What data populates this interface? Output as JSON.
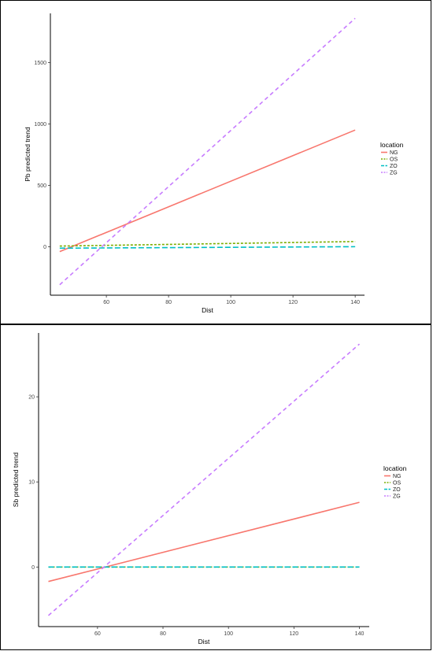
{
  "chart_data": [
    {
      "type": "line",
      "title": "",
      "xlabel": "Dist",
      "ylabel": "Pb  predicted trend",
      "xlim": [
        42,
        143
      ],
      "ylim": [
        -395,
        1900
      ],
      "xticks": [
        60,
        80,
        100,
        120,
        140
      ],
      "yticks": [
        0,
        500,
        1000,
        1500
      ],
      "grid": false,
      "legend_position": "right",
      "legend_title": "location",
      "series": [
        {
          "name": "NG",
          "color": "#f8766d",
          "dash": "solid",
          "x": [
            45,
            140
          ],
          "y": [
            -40,
            950
          ]
        },
        {
          "name": "OS",
          "color": "#7cae00",
          "dash": "dashed-short",
          "x": [
            45,
            140
          ],
          "y": [
            5,
            42
          ]
        },
        {
          "name": "ZO",
          "color": "#00bfc4",
          "dash": "dashed-long",
          "x": [
            45,
            140
          ],
          "y": [
            -12,
            0
          ]
        },
        {
          "name": "ZG",
          "color": "#c77cff",
          "dash": "dashed",
          "x": [
            45,
            140
          ],
          "y": [
            -310,
            1860
          ]
        }
      ]
    },
    {
      "type": "line",
      "title": "",
      "xlabel": "Dist",
      "ylabel": "Sb  predicted trend",
      "xlim": [
        42,
        143
      ],
      "ylim": [
        -7,
        27.5
      ],
      "xticks": [
        60,
        80,
        100,
        120,
        140
      ],
      "yticks": [
        0,
        10,
        20
      ],
      "grid": false,
      "legend_position": "right",
      "legend_title": "location",
      "series": [
        {
          "name": "NG",
          "color": "#f8766d",
          "dash": "solid",
          "x": [
            45,
            140
          ],
          "y": [
            -1.7,
            7.6
          ]
        },
        {
          "name": "OS",
          "color": "#7cae00",
          "dash": "dashed-short",
          "x": [
            45,
            140
          ],
          "y": [
            0,
            0
          ]
        },
        {
          "name": "ZO",
          "color": "#00bfc4",
          "dash": "dashed-long",
          "x": [
            45,
            140
          ],
          "y": [
            0,
            0
          ]
        },
        {
          "name": "ZG",
          "color": "#c77cff",
          "dash": "dashed",
          "x": [
            45,
            140
          ],
          "y": [
            -5.7,
            26.2
          ]
        }
      ]
    }
  ]
}
